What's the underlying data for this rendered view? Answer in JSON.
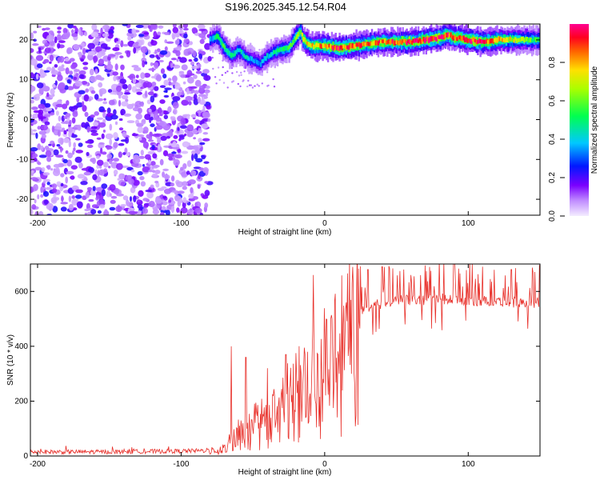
{
  "title": "S196.2025.345.12.54.R04",
  "colorbar": {
    "label": "Normalized spectral amplitude",
    "ticks": [
      "0.0",
      "0.2",
      "0.4",
      "0.6",
      "0.8"
    ]
  },
  "chart_data": [
    {
      "type": "heatmap",
      "xlabel": "Height of straight line (km)",
      "ylabel": "Frequency (Hz)",
      "xlim": [
        -205,
        150
      ],
      "ylim": [
        -24,
        24
      ],
      "xticks": [
        -200,
        -100,
        0,
        100
      ],
      "yticks": [
        -20,
        -10,
        0,
        10,
        20
      ],
      "xtick_labels": [
        "-200",
        "-100",
        "0",
        "100"
      ],
      "ytick_labels": [
        "-20",
        "-10",
        "0",
        "10",
        "20"
      ],
      "zlim": [
        0,
        1
      ],
      "noise_region_x": [
        -205,
        -80
      ],
      "ridge": {
        "x": [
          -80,
          -75,
          -70,
          -65,
          -60,
          -55,
          -50,
          -45,
          -40,
          -35,
          -30,
          -25,
          -20,
          -17,
          -15,
          -10,
          -5,
          0,
          10,
          20,
          30,
          40,
          50,
          60,
          70,
          80,
          85,
          90,
          95,
          100,
          110,
          120,
          130,
          140,
          150
        ],
        "freq": [
          20,
          21,
          18,
          16,
          17.5,
          15.5,
          15,
          14,
          16,
          17,
          17.5,
          18,
          21,
          22,
          20,
          18.5,
          18.5,
          18.5,
          18,
          18.5,
          19,
          19.5,
          19.5,
          19.5,
          20,
          20.5,
          21.5,
          20.5,
          20.5,
          20,
          19.5,
          20,
          20,
          20,
          20
        ],
        "amp": [
          0.35,
          0.5,
          0.55,
          0.45,
          0.4,
          0.45,
          0.35,
          0.35,
          0.4,
          0.45,
          0.5,
          0.55,
          0.6,
          0.65,
          0.7,
          0.75,
          0.8,
          0.85,
          0.9,
          0.9,
          0.85,
          0.85,
          0.9,
          0.9,
          0.95,
          0.95,
          0.9,
          0.85,
          0.9,
          0.95,
          0.9,
          0.8,
          0.7,
          0.6,
          0.5
        ]
      }
    },
    {
      "type": "line",
      "xlabel": "Height of straight line (km)",
      "ylabel": "SNR (10 * v/v)",
      "xlim": [
        -205,
        150
      ],
      "ylim": [
        0,
        700
      ],
      "xticks": [
        -200,
        -100,
        0,
        100
      ],
      "yticks": [
        0,
        200,
        400,
        600
      ],
      "xtick_labels": [
        "-200",
        "-100",
        "0",
        "100"
      ],
      "ytick_labels": [
        "0",
        "200",
        "400",
        "600"
      ],
      "series": [
        {
          "name": "SNR",
          "color": "#e8302a",
          "x": [
            -205,
            -150,
            -100,
            -80,
            -75,
            -70,
            -65,
            -60,
            -55,
            -50,
            -45,
            -40,
            -35,
            -30,
            -25,
            -20,
            -15,
            -10,
            -5,
            0,
            5,
            10,
            15,
            20,
            25,
            30,
            35,
            40,
            45,
            50,
            60,
            70,
            80,
            90,
            100,
            110,
            120,
            130,
            140,
            150
          ],
          "base": [
            15,
            15,
            18,
            20,
            25,
            35,
            60,
            90,
            110,
            130,
            140,
            160,
            180,
            210,
            240,
            270,
            290,
            320,
            330,
            380,
            410,
            440,
            470,
            500,
            520,
            540,
            550,
            555,
            560,
            565,
            570,
            570,
            575,
            570,
            570,
            565,
            565,
            560,
            560,
            560
          ],
          "spikes": [
            {
              "x": -65,
              "y": 400
            },
            {
              "x": -55,
              "y": 360
            },
            {
              "x": -40,
              "y": 320
            },
            {
              "x": -27,
              "y": 370
            },
            {
              "x": -20,
              "y": 375
            },
            {
              "x": -12,
              "y": 380
            },
            {
              "x": -8,
              "y": 660
            },
            {
              "x": 5,
              "y": 500
            },
            {
              "x": 20,
              "y": 610
            },
            {
              "x": 30,
              "y": 680
            },
            {
              "x": 40,
              "y": 690
            },
            {
              "x": 55,
              "y": 680
            },
            {
              "x": 70,
              "y": 695
            },
            {
              "x": 90,
              "y": 700
            },
            {
              "x": 110,
              "y": 690
            },
            {
              "x": 130,
              "y": 680
            },
            {
              "x": 145,
              "y": 670
            }
          ]
        }
      ]
    }
  ]
}
